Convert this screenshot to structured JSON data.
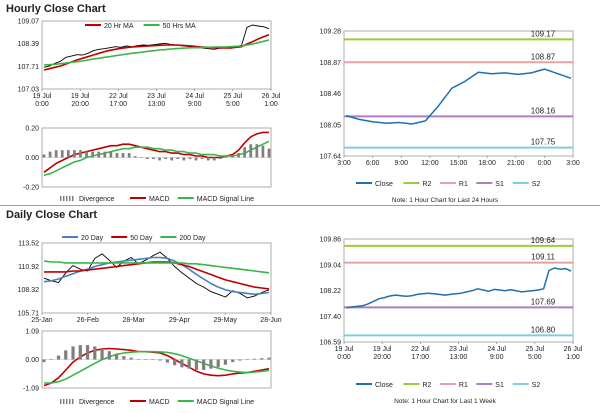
{
  "sections": {
    "hourly_title": "Hourly Close Chart",
    "daily_title": "Daily Close Chart"
  },
  "colors": {
    "price": "#000000",
    "ma_red": "#c00000",
    "ma_green": "#39b54a",
    "ma_blue": "#4a7ebb",
    "macd": "#c00000",
    "signal": "#39b54a",
    "divergence": "#7f7f7f",
    "close_line": "#1f6fb2",
    "r2": "#9acd32",
    "r1": "#e8a0a8",
    "s1": "#b07cc6",
    "s2": "#7ecfe0",
    "grid": "#d9d9d9"
  },
  "chart_data": [
    {
      "id": "hourly_price",
      "type": "line",
      "legend": [
        "20 Hr MA",
        "50 Hrs MA"
      ],
      "yticks": [
        "109.07",
        "108.39",
        "107.71",
        "107.03"
      ],
      "ylim": [
        107.03,
        109.07
      ],
      "xticks": [
        [
          "19 Jul",
          "0:00"
        ],
        [
          "19 Jul",
          "20:00"
        ],
        [
          "22 Jul",
          "17:00"
        ],
        [
          "23 Jul",
          "13:00"
        ],
        [
          "24 Jul",
          "9:00"
        ],
        [
          "25 Jul",
          "5:00"
        ],
        [
          "26 Jul",
          "1:00"
        ]
      ],
      "series": [
        {
          "name": "Price",
          "values": [
            107.68,
            107.72,
            107.8,
            107.86,
            107.98,
            108.02,
            108.06,
            108.05,
            108.1,
            108.18,
            108.22,
            108.24,
            108.27,
            108.3,
            108.28,
            108.32,
            108.3,
            108.33,
            108.35,
            108.34,
            108.36,
            108.38,
            108.4,
            108.37,
            108.35,
            108.33,
            108.31,
            108.3,
            108.28,
            108.26,
            108.24,
            108.22,
            108.25,
            108.27,
            108.25,
            108.3,
            108.34,
            108.88,
            108.95,
            108.92,
            108.9,
            108.84
          ]
        },
        {
          "name": "20 Hr MA",
          "values": [
            107.6,
            107.64,
            107.68,
            107.72,
            107.78,
            107.84,
            107.9,
            107.95,
            108.0,
            108.05,
            108.1,
            108.15,
            108.19,
            108.22,
            108.25,
            108.27,
            108.29,
            108.3,
            108.31,
            108.32,
            108.33,
            108.34,
            108.35,
            108.35,
            108.35,
            108.34,
            108.33,
            108.32,
            108.3,
            108.29,
            108.28,
            108.27,
            108.26,
            108.26,
            108.26,
            108.28,
            108.3,
            108.38,
            108.45,
            108.53,
            108.6,
            108.66
          ]
        },
        {
          "name": "50 Hrs MA",
          "values": [
            107.75,
            107.76,
            107.77,
            107.79,
            107.81,
            107.83,
            107.85,
            107.87,
            107.9,
            107.93,
            107.95,
            107.98,
            108.0,
            108.03,
            108.05,
            108.08,
            108.1,
            108.12,
            108.14,
            108.16,
            108.18,
            108.2,
            108.21,
            108.23,
            108.24,
            108.25,
            108.26,
            108.27,
            108.27,
            108.28,
            108.28,
            108.29,
            108.29,
            108.29,
            108.3,
            108.31,
            108.32,
            108.35,
            108.38,
            108.42,
            108.46,
            108.5
          ]
        }
      ]
    },
    {
      "id": "hourly_macd",
      "type": "line",
      "yticks": [
        "0.20",
        "0.00",
        "-0.20"
      ],
      "ylim": [
        -0.2,
        0.2
      ],
      "legend": [
        "Divergence",
        "MACD",
        "MACD Signal Line"
      ],
      "series": [
        {
          "name": "MACD",
          "values": [
            -0.1,
            -0.07,
            -0.04,
            -0.02,
            0.0,
            0.02,
            0.03,
            0.04,
            0.05,
            0.06,
            0.07,
            0.08,
            0.08,
            0.09,
            0.09,
            0.08,
            0.07,
            0.06,
            0.05,
            0.04,
            0.04,
            0.03,
            0.03,
            0.02,
            0.02,
            0.01,
            0.01,
            0.0,
            0.0,
            0.0,
            0.01,
            0.02,
            0.05,
            0.1,
            0.14,
            0.16,
            0.17,
            0.17
          ]
        },
        {
          "name": "MACD Signal Line",
          "values": [
            -0.12,
            -0.11,
            -0.09,
            -0.07,
            -0.05,
            -0.03,
            -0.02,
            0.0,
            0.01,
            0.02,
            0.03,
            0.04,
            0.05,
            0.06,
            0.06,
            0.07,
            0.07,
            0.07,
            0.06,
            0.06,
            0.05,
            0.05,
            0.04,
            0.04,
            0.03,
            0.03,
            0.02,
            0.02,
            0.02,
            0.01,
            0.01,
            0.01,
            0.02,
            0.03,
            0.05,
            0.07,
            0.09,
            0.11
          ]
        },
        {
          "name": "Divergence",
          "values": [
            0.02,
            0.04,
            0.05,
            0.05,
            0.05,
            0.05,
            0.05,
            0.04,
            0.04,
            0.04,
            0.04,
            0.04,
            0.03,
            0.03,
            0.03,
            0.01,
            0.0,
            -0.01,
            -0.01,
            -0.02,
            -0.01,
            -0.02,
            -0.01,
            -0.02,
            -0.01,
            -0.02,
            -0.01,
            -0.02,
            -0.02,
            -0.01,
            0.0,
            0.01,
            0.03,
            0.07,
            0.09,
            0.09,
            0.08,
            0.06
          ]
        }
      ]
    },
    {
      "id": "hourly_close",
      "type": "line",
      "yticks": [
        "109.28",
        "108.87",
        "108.46",
        "108.05",
        "107.64"
      ],
      "ylim": [
        107.64,
        109.28
      ],
      "xticks": [
        "3:00",
        "6:00",
        "9:00",
        "12:00",
        "15:00",
        "18:00",
        "21:00",
        "0:00",
        "3:00"
      ],
      "levels": [
        {
          "name": "R2",
          "value": 109.17,
          "label": "109.17"
        },
        {
          "name": "R1",
          "value": 108.87,
          "label": "108.87"
        },
        {
          "name": "S1",
          "value": 108.16,
          "label": "108.16"
        },
        {
          "name": "S2",
          "value": 107.75,
          "label": "107.75"
        }
      ],
      "series": [
        {
          "name": "Close",
          "values": [
            108.17,
            108.12,
            108.09,
            108.07,
            108.08,
            108.06,
            108.1,
            108.3,
            108.53,
            108.62,
            108.74,
            108.72,
            108.73,
            108.71,
            108.73,
            108.78,
            108.72,
            108.66
          ]
        }
      ],
      "legend": [
        "Close",
        "R2",
        "R1",
        "S1",
        "S2"
      ],
      "note": "Note: 1 Hour Chart for Last 24 Hours"
    },
    {
      "id": "daily_price",
      "type": "line",
      "legend": [
        "20 Day",
        "50 Day",
        "200 Day"
      ],
      "yticks": [
        "113.52",
        "110.92",
        "108.32",
        "105.71"
      ],
      "ylim": [
        105.71,
        113.52
      ],
      "xticks": [
        "25-Jan",
        "26-Feb",
        "28-Mar",
        "29-Apr",
        "29-May",
        "28-Jun"
      ],
      "series": [
        {
          "name": "Price",
          "values": [
            109.6,
            109.3,
            109.1,
            110.2,
            111.0,
            110.6,
            110.4,
            111.8,
            112.3,
            111.6,
            110.8,
            111.5,
            111.9,
            111.2,
            111.6,
            112.1,
            112.5,
            111.8,
            110.9,
            110.2,
            109.6,
            109.0,
            108.6,
            108.1,
            107.8,
            107.5,
            108.2,
            107.9,
            107.4,
            107.6,
            108.0,
            108.3
          ]
        },
        {
          "name": "20 Day",
          "values": [
            109.2,
            109.3,
            109.5,
            109.8,
            110.1,
            110.4,
            110.6,
            110.9,
            111.1,
            111.3,
            111.4,
            111.5,
            111.6,
            111.7,
            111.8,
            111.9,
            111.9,
            111.8,
            111.5,
            111.1,
            110.6,
            110.0,
            109.5,
            109.0,
            108.6,
            108.3,
            108.1,
            108.0,
            107.9,
            107.8,
            107.9,
            108.0
          ]
        },
        {
          "name": "50 Day",
          "values": [
            110.3,
            110.3,
            110.3,
            110.3,
            110.4,
            110.4,
            110.5,
            110.6,
            110.7,
            110.8,
            110.9,
            111.0,
            111.1,
            111.2,
            111.3,
            111.4,
            111.4,
            111.4,
            111.3,
            111.1,
            110.9,
            110.6,
            110.3,
            110.0,
            109.7,
            109.4,
            109.2,
            109.0,
            108.8,
            108.6,
            108.5,
            108.4
          ]
        },
        {
          "name": "200 Day",
          "values": [
            111.5,
            111.4,
            111.4,
            111.3,
            111.3,
            111.3,
            111.3,
            111.3,
            111.3,
            111.3,
            111.3,
            111.3,
            111.3,
            111.3,
            111.3,
            111.3,
            111.3,
            111.3,
            111.3,
            111.3,
            111.2,
            111.2,
            111.1,
            111.0,
            110.9,
            110.8,
            110.7,
            110.6,
            110.5,
            110.4,
            110.3,
            110.2
          ]
        }
      ]
    },
    {
      "id": "daily_macd",
      "type": "line",
      "yticks": [
        "1.09",
        "0.00",
        "-1.09"
      ],
      "ylim": [
        -1.09,
        1.09
      ],
      "legend": [
        "Divergence",
        "MACD",
        "MACD Signal Line"
      ],
      "series": [
        {
          "name": "MACD",
          "values": [
            -1.0,
            -0.9,
            -0.7,
            -0.4,
            -0.1,
            0.1,
            0.25,
            0.35,
            0.4,
            0.42,
            0.4,
            0.38,
            0.35,
            0.3,
            0.3,
            0.28,
            0.25,
            0.15,
            0.0,
            -0.15,
            -0.3,
            -0.45,
            -0.55,
            -0.6,
            -0.62,
            -0.6,
            -0.55,
            -0.52,
            -0.5,
            -0.45,
            -0.4,
            -0.35
          ]
        },
        {
          "name": "MACD Signal Line",
          "values": [
            -0.9,
            -0.9,
            -0.85,
            -0.75,
            -0.6,
            -0.45,
            -0.3,
            -0.15,
            0.0,
            0.1,
            0.2,
            0.25,
            0.28,
            0.3,
            0.3,
            0.3,
            0.29,
            0.27,
            0.22,
            0.15,
            0.05,
            -0.05,
            -0.15,
            -0.25,
            -0.33,
            -0.4,
            -0.45,
            -0.48,
            -0.5,
            -0.48,
            -0.45,
            -0.42
          ]
        },
        {
          "name": "Divergence",
          "values": [
            -0.1,
            0.0,
            0.15,
            0.35,
            0.5,
            0.55,
            0.55,
            0.5,
            0.4,
            0.32,
            0.2,
            0.13,
            0.07,
            0.0,
            0.0,
            -0.02,
            -0.04,
            -0.12,
            -0.22,
            -0.3,
            -0.35,
            -0.4,
            -0.4,
            -0.35,
            -0.29,
            -0.2,
            -0.1,
            -0.04,
            0.0,
            0.03,
            0.05,
            0.07
          ]
        }
      ]
    },
    {
      "id": "daily_close",
      "type": "line",
      "yticks": [
        "109.86",
        "109.04",
        "108.22",
        "107.40",
        "106.59"
      ],
      "ylim": [
        106.59,
        109.86
      ],
      "xticks": [
        [
          "19 Jul",
          "0:00"
        ],
        [
          "19 Jul",
          "20:00"
        ],
        [
          "22 Jul",
          "17:00"
        ],
        [
          "23 Jul",
          "13:00"
        ],
        [
          "24 Jul",
          "9:00"
        ],
        [
          "25 Jul",
          "5:00"
        ],
        [
          "26 Jul",
          "1:00"
        ]
      ],
      "levels": [
        {
          "name": "R2",
          "value": 109.64,
          "label": "109.64"
        },
        {
          "name": "R1",
          "value": 109.11,
          "label": "109.11"
        },
        {
          "name": "S1",
          "value": 107.69,
          "label": "107.69"
        },
        {
          "name": "S2",
          "value": 106.8,
          "label": "106.80"
        }
      ],
      "series": [
        {
          "name": "Close",
          "values": [
            107.68,
            107.7,
            107.72,
            107.74,
            107.8,
            107.88,
            107.96,
            108.0,
            108.05,
            108.08,
            108.06,
            108.04,
            108.06,
            108.1,
            108.12,
            108.14,
            108.12,
            108.1,
            108.08,
            108.1,
            108.12,
            108.14,
            108.18,
            108.22,
            108.28,
            108.24,
            108.2,
            108.26,
            108.24,
            108.22,
            108.25,
            108.22,
            108.18,
            108.2,
            108.22,
            108.24,
            108.28,
            108.86,
            108.94,
            108.9,
            108.92,
            108.84
          ]
        }
      ],
      "legend": [
        "Close",
        "R2",
        "R1",
        "S1",
        "S2"
      ],
      "note": "Note: 1 Hour Chart for Last 1 Week"
    }
  ]
}
